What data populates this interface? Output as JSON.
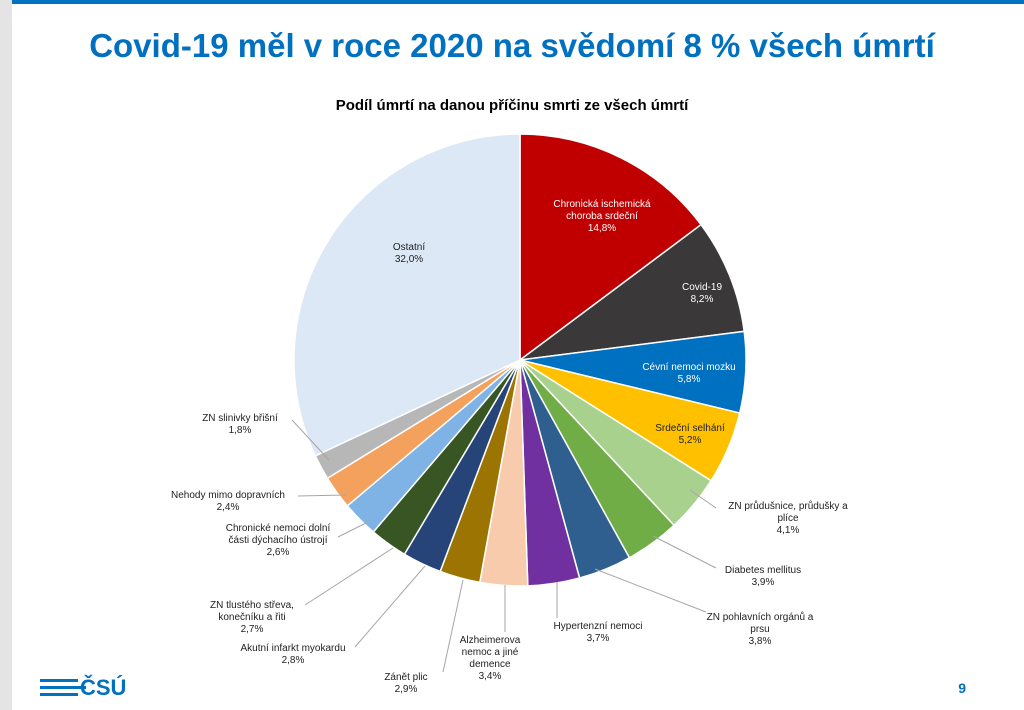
{
  "slide": {
    "title": "Covid-19 měl v roce 2020 na svědomí 8 % všech úmrtí",
    "page_number": "9",
    "logo_text": "ČSÚ",
    "accent_color": "#0070c0"
  },
  "chart_data": {
    "type": "pie",
    "title": "Podíl úmrtí na danou příčinu smrti ze všech úmrtí",
    "unit": "%",
    "start_angle": "12 o'clock",
    "direction": "clockwise",
    "legend": "none",
    "slices": [
      {
        "label": "Chronická ischemická choroba srdeční",
        "value": 14.8,
        "value_label": "14,8%",
        "color": "#c00000"
      },
      {
        "label": "Covid-19",
        "value": 8.2,
        "value_label": "8,2%",
        "color": "#3a3838"
      },
      {
        "label": "Cévní nemoci mozku",
        "value": 5.8,
        "value_label": "5,8%",
        "color": "#0070c0"
      },
      {
        "label": "Srdeční selhání",
        "value": 5.2,
        "value_label": "5,2%",
        "color": "#ffc000"
      },
      {
        "label": "ZN průdušnice, průdušky a plíce",
        "value": 4.1,
        "value_label": "4,1%",
        "color": "#a9d18e"
      },
      {
        "label": "Diabetes mellitus",
        "value": 3.9,
        "value_label": "3,9%",
        "color": "#70ad47"
      },
      {
        "label": "ZN pohlavních orgánů a prsu",
        "value": 3.8,
        "value_label": "3,8%",
        "color": "#2e5f8f"
      },
      {
        "label": "Hypertenzní nemoci",
        "value": 3.7,
        "value_label": "3,7%",
        "color": "#7030a0"
      },
      {
        "label": "Alzheimerova nemoc a jiné demence",
        "value": 3.4,
        "value_label": "3,4%",
        "color": "#f8cbad"
      },
      {
        "label": "Zánět plic",
        "value": 2.9,
        "value_label": "2,9%",
        "color": "#9c7402"
      },
      {
        "label": "Akutní infarkt myokardu",
        "value": 2.8,
        "value_label": "2,8%",
        "color": "#264478"
      },
      {
        "label": "ZN tlustého střeva, konečníku a řiti",
        "value": 2.7,
        "value_label": "2,7%",
        "color": "#375623"
      },
      {
        "label": "Chronické nemoci dolní části dýchacího ústrojí",
        "value": 2.6,
        "value_label": "2,6%",
        "color": "#7fb2e5"
      },
      {
        "label": "Nehody mimo dopravních",
        "value": 2.4,
        "value_label": "2,4%",
        "color": "#f4a15d"
      },
      {
        "label": "ZN slinivky břišní",
        "value": 1.8,
        "value_label": "1,8%",
        "color": "#b7b7b7"
      },
      {
        "label": "Ostatní",
        "value": 32.0,
        "value_label": "32,0%",
        "color": "#dce8f5"
      }
    ]
  }
}
